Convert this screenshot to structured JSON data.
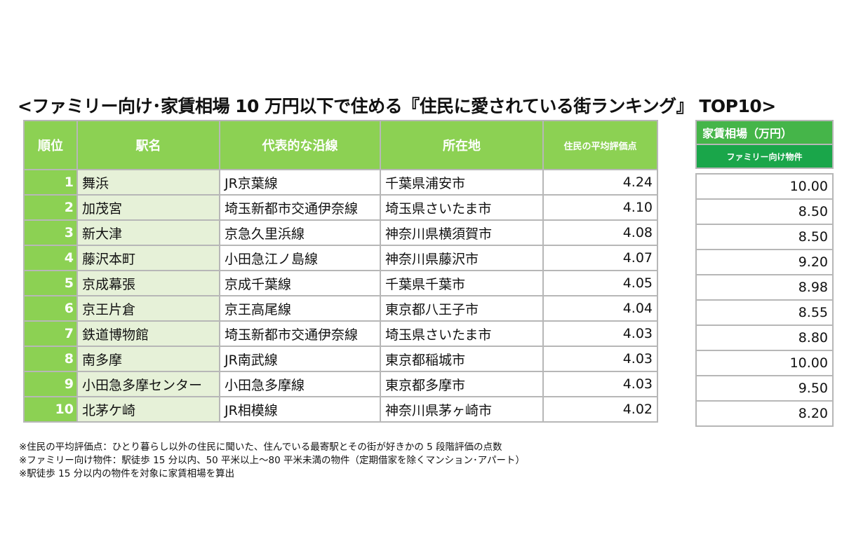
{
  "title": "<ファミリー向け･家賃相場 10 万円以下で住める『住民に愛されている街ランキング』 TOP10>",
  "headers": {
    "rank": "順位",
    "station": "駅名",
    "line": "代表的な沿線",
    "location": "所在地",
    "score": "住民の平均評価点"
  },
  "rent_headers": {
    "title": "家賃相場（万円）",
    "subtitle": "ファミリー向け物件"
  },
  "rows": [
    {
      "rank": "1",
      "station": "舞浜",
      "line": "JR京葉線",
      "location": "千葉県浦安市",
      "score": "4.24",
      "rent": "10.00"
    },
    {
      "rank": "2",
      "station": "加茂宮",
      "line": "埼玉新都市交通伊奈線",
      "location": "埼玉県さいたま市",
      "score": "4.10",
      "rent": "8.50"
    },
    {
      "rank": "3",
      "station": "新大津",
      "line": "京急久里浜線",
      "location": "神奈川県横須賀市",
      "score": "4.08",
      "rent": "8.50"
    },
    {
      "rank": "4",
      "station": "藤沢本町",
      "line": "小田急江ノ島線",
      "location": "神奈川県藤沢市",
      "score": "4.07",
      "rent": "9.20"
    },
    {
      "rank": "5",
      "station": "京成幕張",
      "line": "京成千葉線",
      "location": "千葉県千葉市",
      "score": "4.05",
      "rent": "8.98"
    },
    {
      "rank": "6",
      "station": "京王片倉",
      "line": "京王高尾線",
      "location": "東京都八王子市",
      "score": "4.04",
      "rent": "8.55"
    },
    {
      "rank": "7",
      "station": "鉄道博物館",
      "line": "埼玉新都市交通伊奈線",
      "location": "埼玉県さいたま市",
      "score": "4.03",
      "rent": "8.80"
    },
    {
      "rank": "8",
      "station": "南多摩",
      "line": "JR南武線",
      "location": "東京都稲城市",
      "score": "4.03",
      "rent": "10.00"
    },
    {
      "rank": "9",
      "station": "小田急多摩センター",
      "line": "小田急多摩線",
      "location": "東京都多摩市",
      "score": "4.03",
      "rent": "9.50"
    },
    {
      "rank": "10",
      "station": "北茅ケ崎",
      "line": "JR相模線",
      "location": "神奈川県茅ヶ崎市",
      "score": "4.02",
      "rent": "8.20"
    }
  ],
  "notes": [
    "※住民の平均評価点：ひとり暮らし以外の住民に聞いた、住んでいる最寄駅とその街が好きかの 5 段階評価の点数",
    "※ファミリー向け物件：駅徒歩 15 分以内、50 平米以上～80 平米未満の物件（定期借家を除くマンション･アパート）",
    "※駅徒歩 15 分以内の物件を対象に家賃相場を算出"
  ],
  "colors": {
    "header_green": "#8cd153",
    "station_bg": "#e6f1d8",
    "rent_header": "#45b549",
    "rent_subheader": "#1aa64a"
  }
}
